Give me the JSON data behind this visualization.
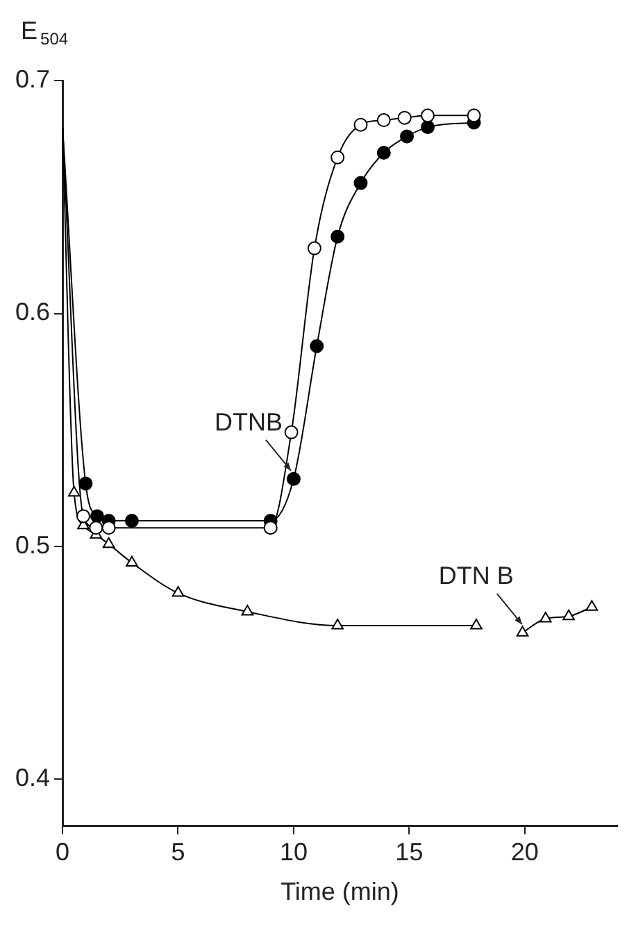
{
  "chart_data": {
    "type": "line",
    "xlabel": "Time (min)",
    "ylabel": "E$_{504}$",
    "xlim": [
      0,
      24
    ],
    "xticks": [
      0,
      5,
      10,
      15,
      20
    ],
    "ylim": [
      0.38,
      0.7
    ],
    "yticks": [
      0.4,
      0.5,
      0.6,
      0.7
    ],
    "grid": false,
    "legend": false,
    "line_style": "solid",
    "series": [
      {
        "color": "#000000",
        "marker": "circle",
        "colors": [
          "#ffffff",
          "#ffffff",
          "#ffffff",
          "#ffffff",
          "#ffffff",
          "#ffffff",
          "#ffffff",
          "#ffffff",
          "#ffffff",
          "#ffffff",
          "#ffffff",
          "#ffffff",
          "#ffffff"
        ],
        "x": [
          0,
          0.9,
          1.45,
          2.0,
          9.0,
          9.9,
          10.9,
          11.9,
          12.9,
          13.9,
          14.8,
          15.8,
          17.8
        ],
        "values": [
          0.68,
          0.513,
          0.508,
          0.508,
          0.508,
          0.549,
          0.628,
          0.667,
          0.681,
          0.683,
          0.684,
          0.685,
          0.685
        ]
      },
      {
        "color": "#000000",
        "marker": "circle",
        "x": [
          0,
          1.0,
          1.5,
          2.0,
          3.0,
          9.0,
          10.0,
          11.0,
          11.9,
          12.9,
          13.9,
          14.9,
          15.8,
          17.8
        ],
        "values": [
          0.68,
          0.527,
          0.513,
          0.511,
          0.511,
          0.511,
          0.529,
          0.586,
          0.633,
          0.656,
          0.669,
          0.676,
          0.68,
          0.682
        ]
      },
      {
        "color": "#000000",
        "marker": "triangle",
        "colors": [
          "#ffffff",
          "#ffffff",
          "#ffffff",
          "#ffffff",
          "#ffffff",
          "#ffffff",
          "#ffffff",
          "#ffffff",
          "#ffffff",
          "#ffffff",
          "#ffffff",
          "#ffffff",
          "#ffffff",
          "#ffffff",
          "#ffffff"
        ],
        "x": [
          0,
          0.5,
          0.9,
          1.45,
          2.0,
          3.0,
          5.0,
          8.0,
          11.9,
          17.9,
          19.0,
          19.9,
          20.9,
          21.9,
          22.9
        ],
        "values": [
          0.68,
          0.523,
          0.509,
          0.505,
          0.501,
          0.493,
          0.48,
          0.472,
          0.466,
          0.466,
          null,
          0.463,
          0.469,
          0.47,
          0.474
        ]
      }
    ],
    "annotations": [
      {
        "text": "DTNB",
        "x": 10,
        "y": 0.529
      },
      {
        "text": "DTN B",
        "x": 20,
        "y": 0.463
      }
    ]
  }
}
